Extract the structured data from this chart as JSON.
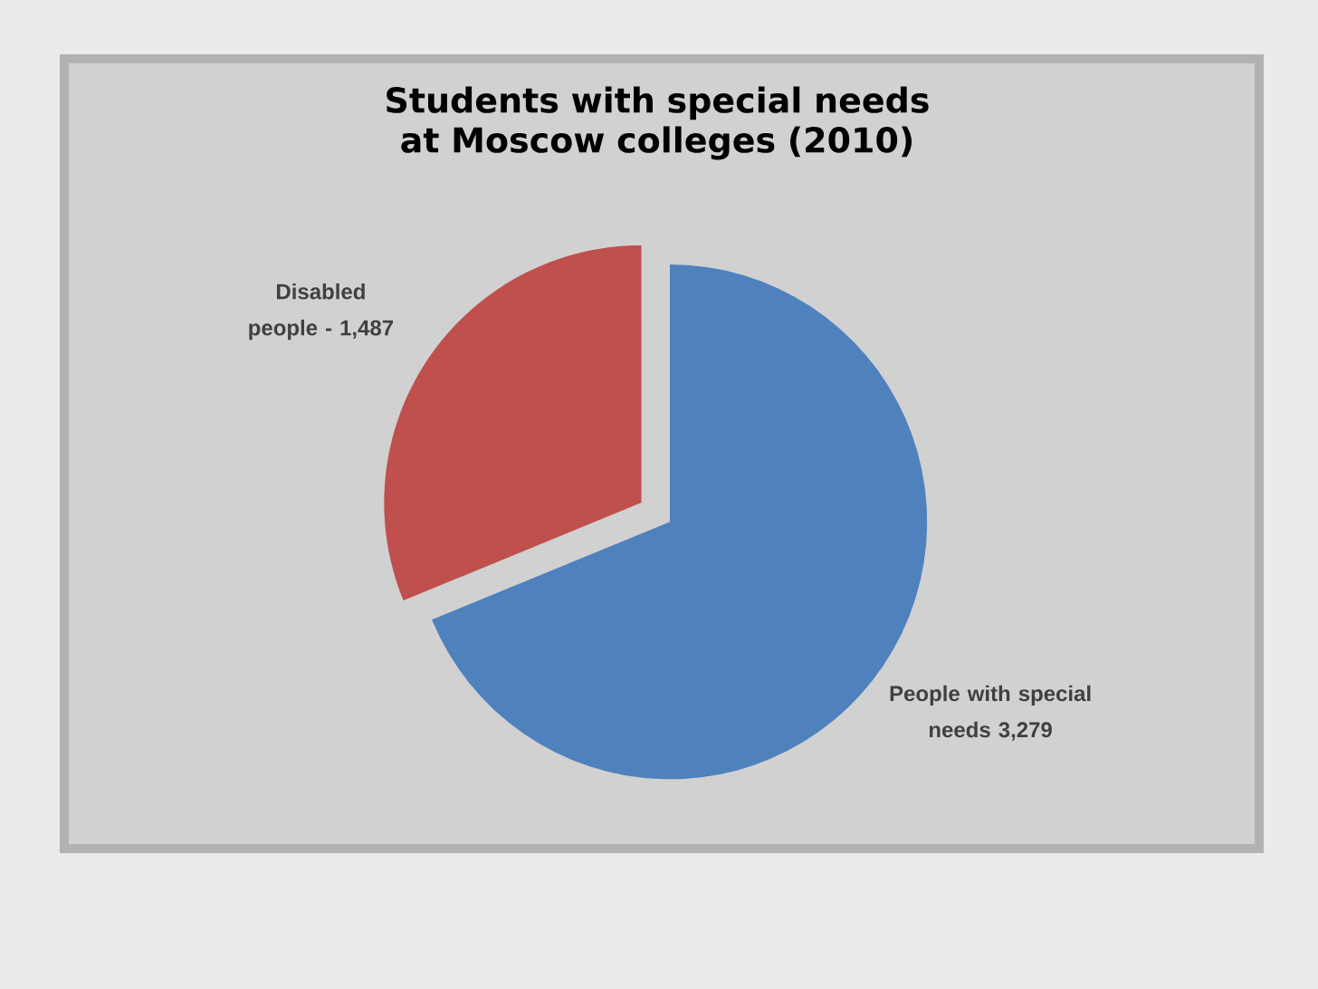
{
  "chart_data": {
    "type": "pie",
    "title": "Students with special needs at Moscow colleges (2010)",
    "categories": [
      "Disabled people -",
      "People with special needs"
    ],
    "values": [
      1487,
      3279
    ],
    "value_labels": [
      "1,487",
      "3,279"
    ],
    "colors": [
      "#c0504d",
      "#4f81bd"
    ]
  }
}
